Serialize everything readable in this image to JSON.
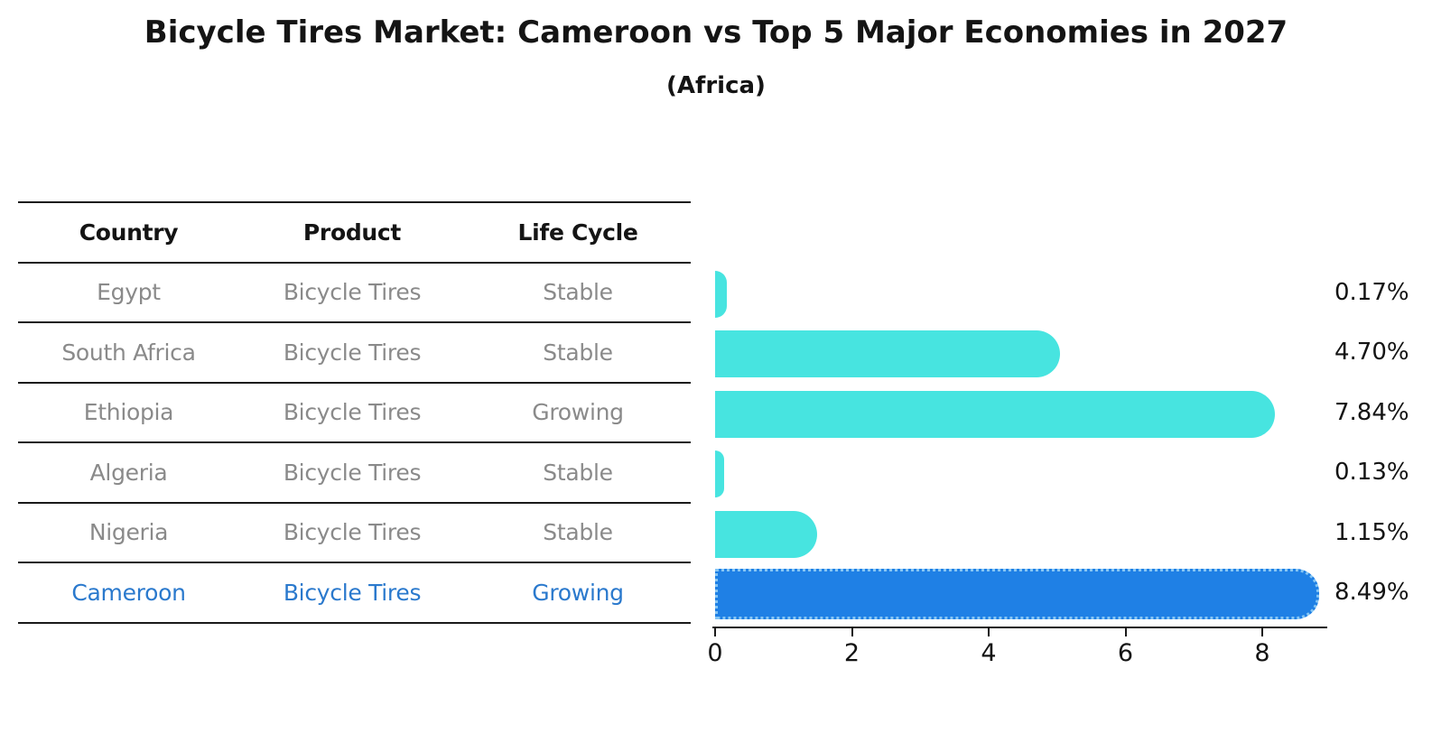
{
  "title": "Bicycle Tires Market: Cameroon vs Top 5 Major Economies in 2027",
  "subtitle": "(Africa)",
  "table": {
    "headers": [
      "Country",
      "Product",
      "Life Cycle"
    ],
    "rows": [
      {
        "country": "Egypt",
        "product": "Bicycle Tires",
        "life_cycle": "Stable",
        "highlight": false
      },
      {
        "country": "South Africa",
        "product": "Bicycle Tires",
        "life_cycle": "Stable",
        "highlight": false
      },
      {
        "country": "Ethiopia",
        "product": "Bicycle Tires",
        "life_cycle": "Growing",
        "highlight": false
      },
      {
        "country": "Algeria",
        "product": "Bicycle Tires",
        "life_cycle": "Stable",
        "highlight": false
      },
      {
        "country": "Nigeria",
        "product": "Bicycle Tires",
        "life_cycle": "Stable",
        "highlight": false
      },
      {
        "country": "Cameroon",
        "product": "Bicycle Tires",
        "life_cycle": "Growing",
        "highlight": true
      }
    ]
  },
  "chart_data": {
    "type": "bar",
    "orientation": "horizontal",
    "title": "Bicycle Tires Market: Cameroon vs Top 5 Major Economies in 2027 (Africa)",
    "categories": [
      "Egypt",
      "South Africa",
      "Ethiopia",
      "Algeria",
      "Nigeria",
      "Cameroon"
    ],
    "values": [
      0.17,
      4.7,
      7.84,
      0.13,
      1.15,
      8.49
    ],
    "value_labels": [
      "0.17%",
      "4.70%",
      "7.84%",
      "0.13%",
      "1.15%",
      "8.49%"
    ],
    "highlight_index": 5,
    "xticks": [
      0,
      2,
      4,
      6,
      8
    ],
    "xlim": [
      0,
      8.95
    ],
    "grid": false,
    "legend": false
  },
  "colors": {
    "bar": "#47e4e0",
    "highlight_bar": "#1f80e5",
    "highlight_text": "#2a79cd",
    "table_text": "#8a8a8a",
    "heading_text": "#141414",
    "axis": "#1a1a1a"
  }
}
